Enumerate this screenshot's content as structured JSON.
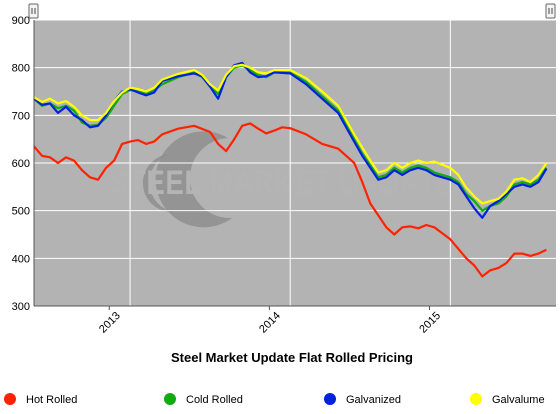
{
  "chart_data": {
    "type": "line",
    "title": "Steel Market Update Flat Rolled Pricing",
    "watermark": "STEEL MARKET UPDATE",
    "xlabel": "",
    "ylabel": "",
    "x_range": [
      2012.4,
      2015.66
    ],
    "ylim": [
      300,
      900
    ],
    "yticks": [
      "300",
      "400",
      "500",
      "600",
      "700",
      "800",
      "900"
    ],
    "xticks": [
      {
        "label": "2013",
        "value": 2012.87
      },
      {
        "label": "2014",
        "value": 2013.87
      },
      {
        "label": "2015",
        "value": 2014.87
      }
    ],
    "x_grid_lines": [
      2013.0,
      2014.0,
      2015.0
    ],
    "grid": true,
    "plot_background": "#b3b3b3",
    "legend_position": "bottom",
    "series": [
      {
        "name": "Hot Rolled",
        "color": "#ff2200",
        "points": [
          [
            2012.4,
            635
          ],
          [
            2012.45,
            615
          ],
          [
            2012.5,
            612
          ],
          [
            2012.55,
            600
          ],
          [
            2012.6,
            612
          ],
          [
            2012.65,
            605
          ],
          [
            2012.7,
            585
          ],
          [
            2012.75,
            570
          ],
          [
            2012.8,
            565
          ],
          [
            2012.85,
            590
          ],
          [
            2012.9,
            605
          ],
          [
            2012.95,
            640
          ],
          [
            2013.0,
            645
          ],
          [
            2013.05,
            648
          ],
          [
            2013.1,
            640
          ],
          [
            2013.15,
            645
          ],
          [
            2013.2,
            660
          ],
          [
            2013.3,
            672
          ],
          [
            2013.4,
            678
          ],
          [
            2013.5,
            665
          ],
          [
            2013.55,
            640
          ],
          [
            2013.6,
            625
          ],
          [
            2013.65,
            650
          ],
          [
            2013.7,
            678
          ],
          [
            2013.75,
            683
          ],
          [
            2013.8,
            672
          ],
          [
            2013.85,
            662
          ],
          [
            2013.9,
            668
          ],
          [
            2013.95,
            675
          ],
          [
            2014.0,
            673
          ],
          [
            2014.1,
            660
          ],
          [
            2014.2,
            640
          ],
          [
            2014.3,
            630
          ],
          [
            2014.4,
            600
          ],
          [
            2014.45,
            560
          ],
          [
            2014.5,
            515
          ],
          [
            2014.55,
            490
          ],
          [
            2014.6,
            465
          ],
          [
            2014.65,
            450
          ],
          [
            2014.7,
            465
          ],
          [
            2014.75,
            467
          ],
          [
            2014.8,
            463
          ],
          [
            2014.85,
            470
          ],
          [
            2014.9,
            465
          ],
          [
            2015.0,
            440
          ],
          [
            2015.05,
            420
          ],
          [
            2015.1,
            400
          ],
          [
            2015.15,
            385
          ],
          [
            2015.2,
            362
          ],
          [
            2015.25,
            375
          ],
          [
            2015.3,
            380
          ],
          [
            2015.35,
            390
          ],
          [
            2015.4,
            410
          ],
          [
            2015.45,
            410
          ],
          [
            2015.5,
            405
          ],
          [
            2015.55,
            410
          ],
          [
            2015.6,
            418
          ]
        ]
      },
      {
        "name": "Cold Rolled",
        "color": "#11aa11",
        "points": [
          [
            2012.4,
            735
          ],
          [
            2012.45,
            720
          ],
          [
            2012.5,
            725
          ],
          [
            2012.55,
            715
          ],
          [
            2012.6,
            720
          ],
          [
            2012.65,
            710
          ],
          [
            2012.7,
            685
          ],
          [
            2012.75,
            678
          ],
          [
            2012.8,
            680
          ],
          [
            2012.85,
            695
          ],
          [
            2012.9,
            720
          ],
          [
            2012.95,
            745
          ],
          [
            2013.0,
            753
          ],
          [
            2013.05,
            750
          ],
          [
            2013.1,
            745
          ],
          [
            2013.15,
            752
          ],
          [
            2013.2,
            765
          ],
          [
            2013.3,
            780
          ],
          [
            2013.4,
            790
          ],
          [
            2013.45,
            780
          ],
          [
            2013.5,
            760
          ],
          [
            2013.55,
            745
          ],
          [
            2013.6,
            780
          ],
          [
            2013.65,
            800
          ],
          [
            2013.7,
            805
          ],
          [
            2013.75,
            795
          ],
          [
            2013.8,
            785
          ],
          [
            2013.85,
            780
          ],
          [
            2013.9,
            790
          ],
          [
            2014.0,
            790
          ],
          [
            2014.1,
            770
          ],
          [
            2014.2,
            740
          ],
          [
            2014.3,
            710
          ],
          [
            2014.35,
            680
          ],
          [
            2014.4,
            650
          ],
          [
            2014.45,
            620
          ],
          [
            2014.5,
            595
          ],
          [
            2014.55,
            570
          ],
          [
            2014.6,
            575
          ],
          [
            2014.65,
            590
          ],
          [
            2014.7,
            580
          ],
          [
            2014.75,
            590
          ],
          [
            2014.8,
            595
          ],
          [
            2014.85,
            590
          ],
          [
            2014.9,
            580
          ],
          [
            2015.0,
            570
          ],
          [
            2015.05,
            560
          ],
          [
            2015.1,
            535
          ],
          [
            2015.15,
            520
          ],
          [
            2015.2,
            500
          ],
          [
            2015.25,
            510
          ],
          [
            2015.3,
            515
          ],
          [
            2015.35,
            530
          ],
          [
            2015.4,
            555
          ],
          [
            2015.45,
            560
          ],
          [
            2015.5,
            555
          ],
          [
            2015.55,
            565
          ],
          [
            2015.6,
            590
          ]
        ]
      },
      {
        "name": "Galvanized",
        "color": "#0022dd",
        "points": [
          [
            2012.4,
            735
          ],
          [
            2012.45,
            722
          ],
          [
            2012.5,
            725
          ],
          [
            2012.55,
            705
          ],
          [
            2012.6,
            718
          ],
          [
            2012.65,
            700
          ],
          [
            2012.7,
            690
          ],
          [
            2012.75,
            675
          ],
          [
            2012.8,
            678
          ],
          [
            2012.85,
            700
          ],
          [
            2012.9,
            730
          ],
          [
            2012.95,
            750
          ],
          [
            2013.0,
            755
          ],
          [
            2013.05,
            748
          ],
          [
            2013.1,
            742
          ],
          [
            2013.15,
            748
          ],
          [
            2013.2,
            772
          ],
          [
            2013.3,
            782
          ],
          [
            2013.4,
            788
          ],
          [
            2013.45,
            782
          ],
          [
            2013.5,
            760
          ],
          [
            2013.55,
            735
          ],
          [
            2013.6,
            780
          ],
          [
            2013.65,
            805
          ],
          [
            2013.7,
            810
          ],
          [
            2013.75,
            790
          ],
          [
            2013.8,
            780
          ],
          [
            2013.85,
            782
          ],
          [
            2013.9,
            790
          ],
          [
            2014.0,
            788
          ],
          [
            2014.1,
            765
          ],
          [
            2014.2,
            735
          ],
          [
            2014.3,
            705
          ],
          [
            2014.35,
            675
          ],
          [
            2014.4,
            645
          ],
          [
            2014.45,
            615
          ],
          [
            2014.5,
            590
          ],
          [
            2014.55,
            565
          ],
          [
            2014.6,
            570
          ],
          [
            2014.65,
            585
          ],
          [
            2014.7,
            575
          ],
          [
            2014.75,
            585
          ],
          [
            2014.8,
            590
          ],
          [
            2014.85,
            585
          ],
          [
            2014.9,
            575
          ],
          [
            2015.0,
            565
          ],
          [
            2015.05,
            555
          ],
          [
            2015.1,
            530
          ],
          [
            2015.15,
            505
          ],
          [
            2015.2,
            485
          ],
          [
            2015.25,
            510
          ],
          [
            2015.3,
            520
          ],
          [
            2015.35,
            535
          ],
          [
            2015.4,
            550
          ],
          [
            2015.45,
            555
          ],
          [
            2015.5,
            550
          ],
          [
            2015.55,
            560
          ],
          [
            2015.6,
            588
          ]
        ]
      },
      {
        "name": "Galvalume",
        "color": "#ffff00",
        "points": [
          [
            2012.4,
            738
          ],
          [
            2012.45,
            728
          ],
          [
            2012.5,
            735
          ],
          [
            2012.55,
            725
          ],
          [
            2012.6,
            730
          ],
          [
            2012.65,
            718
          ],
          [
            2012.7,
            700
          ],
          [
            2012.75,
            690
          ],
          [
            2012.8,
            690
          ],
          [
            2012.85,
            705
          ],
          [
            2012.9,
            730
          ],
          [
            2012.95,
            748
          ],
          [
            2013.0,
            758
          ],
          [
            2013.05,
            755
          ],
          [
            2013.1,
            750
          ],
          [
            2013.15,
            758
          ],
          [
            2013.2,
            775
          ],
          [
            2013.3,
            787
          ],
          [
            2013.4,
            795
          ],
          [
            2013.45,
            785
          ],
          [
            2013.5,
            765
          ],
          [
            2013.55,
            752
          ],
          [
            2013.6,
            785
          ],
          [
            2013.65,
            803
          ],
          [
            2013.7,
            806
          ],
          [
            2013.75,
            800
          ],
          [
            2013.8,
            790
          ],
          [
            2013.85,
            788
          ],
          [
            2013.9,
            795
          ],
          [
            2014.0,
            795
          ],
          [
            2014.1,
            778
          ],
          [
            2014.2,
            750
          ],
          [
            2014.3,
            720
          ],
          [
            2014.35,
            690
          ],
          [
            2014.4,
            660
          ],
          [
            2014.45,
            632
          ],
          [
            2014.5,
            605
          ],
          [
            2014.55,
            580
          ],
          [
            2014.6,
            585
          ],
          [
            2014.65,
            600
          ],
          [
            2014.7,
            590
          ],
          [
            2014.75,
            600
          ],
          [
            2014.8,
            605
          ],
          [
            2014.85,
            600
          ],
          [
            2014.9,
            603
          ],
          [
            2015.0,
            590
          ],
          [
            2015.05,
            575
          ],
          [
            2015.1,
            548
          ],
          [
            2015.15,
            530
          ],
          [
            2015.2,
            515
          ],
          [
            2015.25,
            520
          ],
          [
            2015.3,
            525
          ],
          [
            2015.35,
            540
          ],
          [
            2015.4,
            565
          ],
          [
            2015.45,
            568
          ],
          [
            2015.5,
            560
          ],
          [
            2015.55,
            575
          ],
          [
            2015.6,
            600
          ]
        ]
      }
    ]
  }
}
